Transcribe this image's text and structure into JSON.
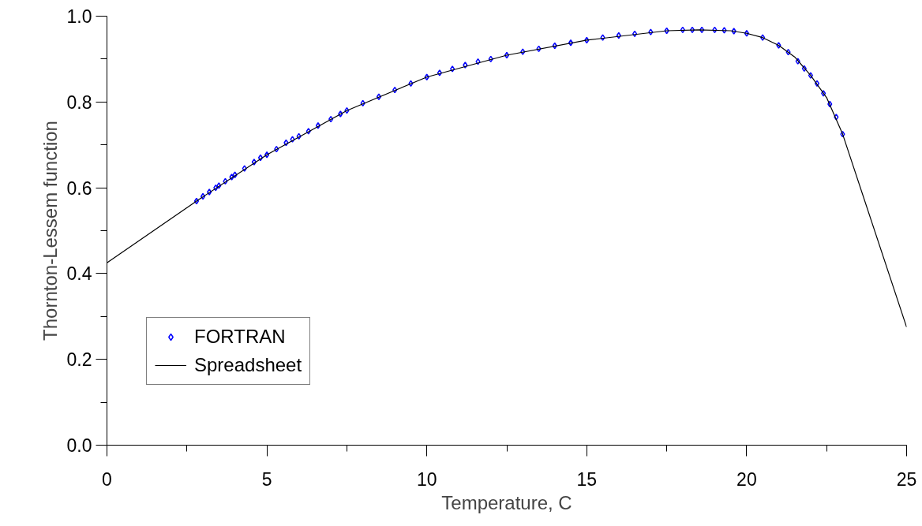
{
  "chart_data": {
    "type": "line",
    "xlabel": "Temperature, C",
    "ylabel": "Thornton-Lessem function",
    "xlim": [
      0,
      25
    ],
    "ylim": [
      0,
      1.0
    ],
    "xticks": [
      0,
      {
        "value": 2.5,
        "label": null
      },
      5,
      {
        "value": 7.5,
        "label": null
      },
      10,
      {
        "value": 12.5,
        "label": null
      },
      15,
      {
        "value": 17.5,
        "label": null
      },
      20,
      {
        "value": 22.5,
        "label": null
      },
      25
    ],
    "yticks": [
      {
        "value": 0,
        "label": "0.0"
      },
      {
        "value": 0.1,
        "label": null
      },
      0.2,
      {
        "value": 0.3,
        "label": null
      },
      0.4,
      {
        "value": 0.5,
        "label": null
      },
      0.6,
      {
        "value": 0.7,
        "label": null
      },
      0.8,
      {
        "value": 0.9,
        "label": null
      },
      {
        "value": 1.0,
        "label": "1.0"
      }
    ],
    "grid": false,
    "legend": "bottom left",
    "series": [
      {
        "name": "FORTRAN",
        "type": "scatter",
        "marker": "diamond",
        "color": "#0000ff",
        "x": [
          2.8,
          3,
          3.2,
          3.4,
          3.5,
          3.7,
          3.9,
          4,
          4.3,
          4.6,
          4.8,
          5,
          5.3,
          5.6,
          5.8,
          6,
          6.3,
          6.6,
          7,
          7.3,
          7.5,
          8,
          8.5,
          9,
          9.5,
          10,
          10.4,
          10.8,
          11.2,
          11.6,
          12,
          12.5,
          13,
          13.5,
          14,
          14.5,
          15,
          15.5,
          16,
          16.5,
          17,
          17.5,
          18,
          18.3,
          18.6,
          19,
          19.3,
          19.6,
          20,
          20.5,
          21,
          21.3,
          21.6,
          21.8,
          22,
          22.2,
          22.4,
          22.6,
          22.8,
          23
        ],
        "values": [
          0.569,
          0.58,
          0.59,
          0.6,
          0.605,
          0.615,
          0.625,
          0.63,
          0.645,
          0.66,
          0.67,
          0.677,
          0.69,
          0.705,
          0.713,
          0.72,
          0.732,
          0.745,
          0.76,
          0.772,
          0.78,
          0.797,
          0.812,
          0.828,
          0.843,
          0.858,
          0.868,
          0.877,
          0.886,
          0.894,
          0.9,
          0.909,
          0.917,
          0.924,
          0.931,
          0.938,
          0.944,
          0.95,
          0.955,
          0.959,
          0.963,
          0.966,
          0.968,
          0.968,
          0.968,
          0.968,
          0.967,
          0.965,
          0.96,
          0.95,
          0.932,
          0.916,
          0.895,
          0.878,
          0.862,
          0.843,
          0.82,
          0.795,
          0.765,
          0.725
        ]
      },
      {
        "name": "Spreadsheet",
        "line_style": "solid",
        "color": "#000000",
        "x": [
          0,
          2.8,
          5,
          7.5,
          10,
          12.5,
          15,
          17.5,
          18.5,
          19.5,
          20,
          20.5,
          21,
          21.5,
          22,
          22.5,
          23,
          25
        ],
        "values": [
          0.425,
          0.569,
          0.677,
          0.78,
          0.858,
          0.909,
          0.944,
          0.966,
          0.968,
          0.966,
          0.96,
          0.95,
          0.932,
          0.905,
          0.862,
          0.81,
          0.725,
          0.275
        ]
      }
    ]
  }
}
